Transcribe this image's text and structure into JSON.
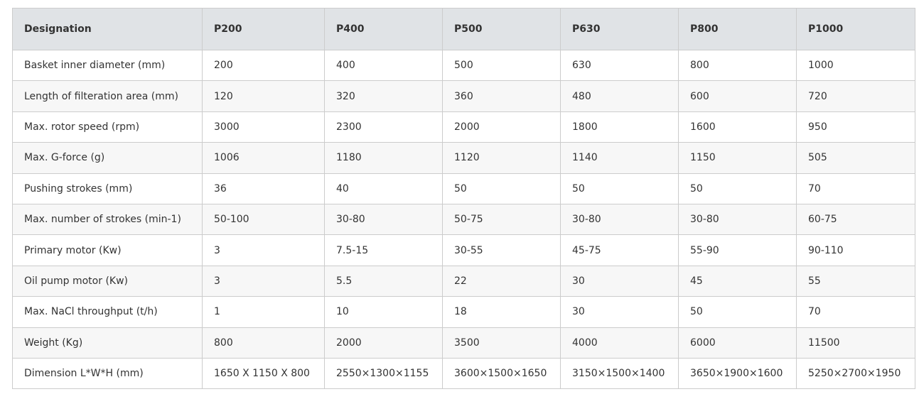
{
  "table": {
    "headers": [
      "Designation",
      "P200",
      "P400",
      "P500",
      "P630",
      "P800",
      "P1000"
    ],
    "rows": [
      [
        "Basket inner diameter (mm)",
        "200",
        "400",
        "500",
        "630",
        "800",
        "1000"
      ],
      [
        "Length of filteration area (mm)",
        "120",
        "320",
        "360",
        "480",
        "600",
        "720"
      ],
      [
        "Max. rotor speed (rpm)",
        "3000",
        "2300",
        "2000",
        "1800",
        "1600",
        "950"
      ],
      [
        "Max. G-force (g)",
        "1006",
        "1180",
        "1120",
        "1140",
        "1150",
        "505"
      ],
      [
        "Pushing strokes (mm)",
        "36",
        "40",
        "50",
        "50",
        "50",
        "70"
      ],
      [
        "Max. number of strokes (min-1)",
        "50-100",
        "30-80",
        "50-75",
        "30-80",
        "30-80",
        "60-75"
      ],
      [
        "Primary motor (Kw)",
        "3",
        "7.5-15",
        "30-55",
        "45-75",
        "55-90",
        "90-110"
      ],
      [
        "Oil pump motor (Kw)",
        "3",
        "5.5",
        "22",
        "30",
        "45",
        "55"
      ],
      [
        "Max. NaCl throughput (t/h)",
        "1",
        "10",
        "18",
        "30",
        "50",
        "70"
      ],
      [
        "Weight (Kg)",
        "800",
        "2000",
        "3500",
        "4000",
        "6000",
        "11500"
      ],
      [
        "Dimension L*W*H (mm)",
        "1650 X 1150 X 800",
        "2550×1300×1155",
        "3600×1500×1650",
        "3150×1500×1400",
        "3650×1900×1600",
        "5250×2700×1950"
      ]
    ]
  }
}
